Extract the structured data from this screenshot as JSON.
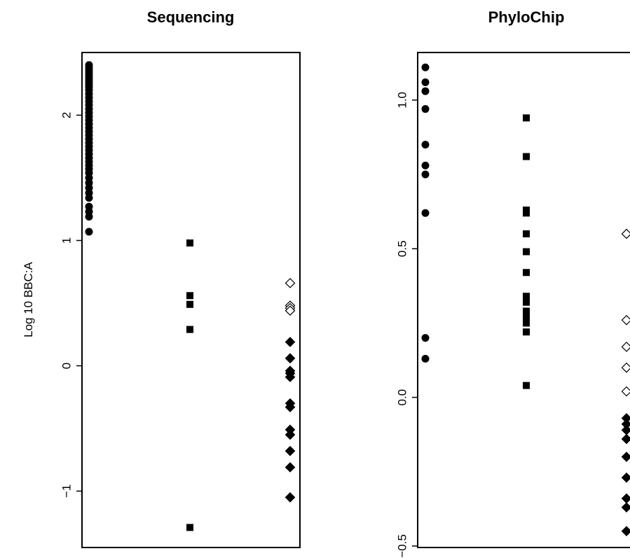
{
  "chart_data": [
    {
      "type": "scatter",
      "title": "Sequencing",
      "xlabel": "",
      "ylabel": "Log 10 BBC:A",
      "ylim": [
        -1.45,
        2.5
      ],
      "yticks": [
        -1,
        0,
        1,
        2
      ],
      "ytick_labels": [
        "−1",
        "0",
        "1",
        "2"
      ],
      "x_categories": 3,
      "series": [
        {
          "marker": "filled-circle",
          "x": 1,
          "values": [
            2.4,
            2.38,
            2.36,
            2.34,
            2.32,
            2.3,
            2.28,
            2.26,
            2.24,
            2.22,
            2.2,
            2.17,
            2.14,
            2.11,
            2.08,
            2.05,
            2.02,
            1.99,
            1.96,
            1.93,
            1.9,
            1.87,
            1.84,
            1.81,
            1.78,
            1.75,
            1.72,
            1.69,
            1.66,
            1.63,
            1.6,
            1.57,
            1.54,
            1.5,
            1.46,
            1.42,
            1.38,
            1.34,
            1.27,
            1.23,
            1.19,
            1.07
          ]
        },
        {
          "marker": "filled-square",
          "x": 2,
          "values": [
            0.98,
            0.56,
            0.49,
            0.29,
            -1.29
          ]
        },
        {
          "marker": "open-diamond",
          "x": 3,
          "values": [
            0.66,
            0.48,
            0.46,
            0.44
          ]
        },
        {
          "marker": "filled-diamond",
          "x": 3,
          "values": [
            0.19,
            0.06,
            -0.04,
            -0.06,
            -0.09,
            -0.3,
            -0.33,
            -0.51,
            -0.55,
            -0.68,
            -0.81,
            -1.05
          ]
        }
      ]
    },
    {
      "type": "scatter",
      "title": "PhyloChip",
      "xlabel": "",
      "ylabel": "",
      "ylim": [
        -0.505,
        1.16
      ],
      "yticks": [
        -0.5,
        0.0,
        0.5,
        1.0
      ],
      "ytick_labels": [
        "−0.5",
        "0.0",
        "0.5",
        "1.0"
      ],
      "x_categories": 3,
      "series": [
        {
          "marker": "filled-circle",
          "x": 1,
          "values": [
            1.11,
            1.06,
            1.03,
            0.97,
            0.85,
            0.78,
            0.75,
            0.62,
            0.2,
            0.13
          ]
        },
        {
          "marker": "filled-square",
          "x": 2,
          "values": [
            0.94,
            0.81,
            0.63,
            0.62,
            0.55,
            0.49,
            0.42,
            0.34,
            0.32,
            0.29,
            0.27,
            0.25,
            0.22,
            0.04
          ]
        },
        {
          "marker": "open-diamond",
          "x": 3,
          "values": [
            0.55,
            0.26,
            0.17,
            0.1,
            0.02
          ]
        },
        {
          "marker": "filled-diamond",
          "x": 3,
          "values": [
            -0.07,
            -0.09,
            -0.11,
            -0.14,
            -0.2,
            -0.27,
            -0.34,
            -0.37,
            -0.45
          ]
        }
      ]
    }
  ]
}
